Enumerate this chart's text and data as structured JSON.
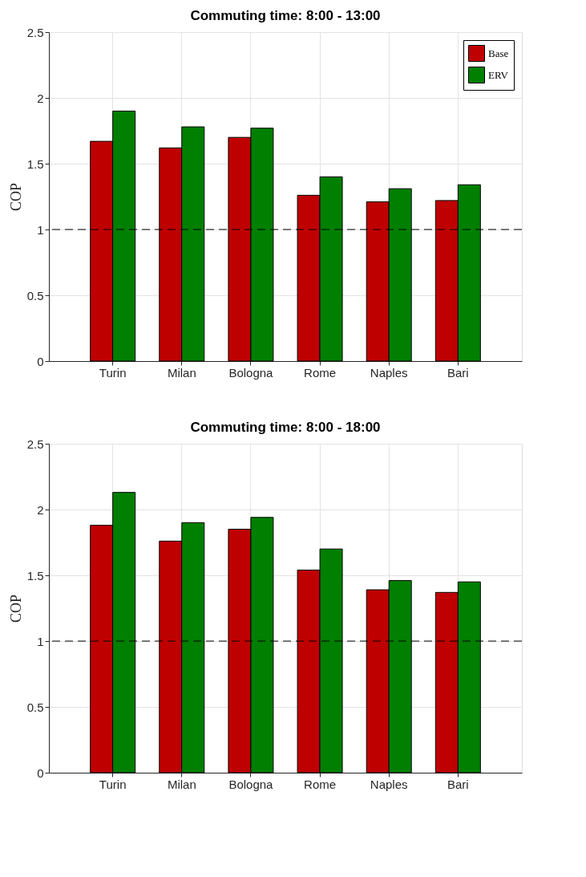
{
  "chart_data": [
    {
      "type": "bar",
      "title": "Commuting time: 8:00 - 13:00",
      "ylabel": "COP",
      "categories": [
        "Turin",
        "Milan",
        "Bologna",
        "Rome",
        "Naples",
        "Bari"
      ],
      "series": [
        {
          "name": "Base",
          "color": "#bf0000",
          "values": [
            1.67,
            1.62,
            1.7,
            1.26,
            1.21,
            1.22
          ]
        },
        {
          "name": "ERV",
          "color": "#007f00",
          "values": [
            1.9,
            1.78,
            1.77,
            1.4,
            1.31,
            1.34
          ]
        }
      ],
      "ylim": [
        0,
        2.5
      ],
      "yticks": [
        0,
        0.5,
        1,
        1.5,
        2,
        2.5
      ],
      "grid": true,
      "legend": "top right",
      "ref_lines": [
        {
          "axis": "y",
          "value": 1,
          "line_style": "dashed",
          "color": "#000000"
        }
      ]
    },
    {
      "type": "bar",
      "title": "Commuting time: 8:00 - 18:00",
      "ylabel": "COP",
      "categories": [
        "Turin",
        "Milan",
        "Bologna",
        "Rome",
        "Naples",
        "Bari"
      ],
      "series": [
        {
          "color": "#bf0000",
          "values": [
            1.88,
            1.76,
            1.85,
            1.54,
            1.39,
            1.37
          ]
        },
        {
          "color": "#007f00",
          "values": [
            2.13,
            1.9,
            1.94,
            1.7,
            1.46,
            1.45
          ]
        }
      ],
      "ylim": [
        0,
        2.5
      ],
      "yticks": [
        0,
        0.5,
        1,
        1.5,
        2,
        2.5
      ],
      "grid": true,
      "legend": false,
      "ref_lines": [
        {
          "axis": "y",
          "value": 1,
          "line_style": "dashed",
          "color": "#000000"
        }
      ]
    }
  ]
}
